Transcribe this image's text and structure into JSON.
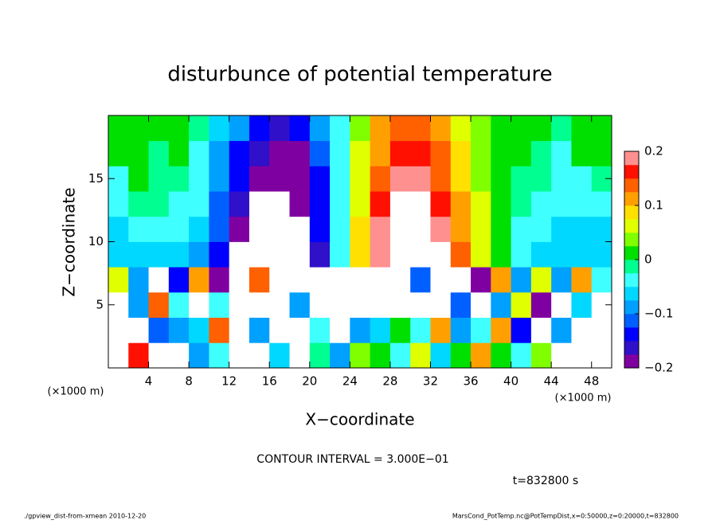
{
  "chart_data": {
    "type": "heatmap",
    "title": "disturbunce of potential temperature",
    "x_label": "X−coordinate",
    "y_label": "Z−coordinate",
    "x_unit": "(×1000 m)",
    "y_unit": "(×1000 m)",
    "contour_note": "CONTOUR INTERVAL = 3.000E−01",
    "time_note": "t=832800 s",
    "footer_left": "./gpview_dist-from-xmean  2010-12-20",
    "footer_right": "MarsCond_PotTemp.nc@PotTempDist,x=0:50000,z=0:20000,t=832800",
    "xlim": [
      0,
      50
    ],
    "ylim": [
      0,
      20
    ],
    "xticks": [
      4,
      8,
      12,
      16,
      20,
      24,
      28,
      32,
      36,
      40,
      44,
      48
    ],
    "yticks": [
      5,
      10,
      15
    ],
    "xbins": [
      0,
      2,
      4,
      6,
      8,
      10,
      12,
      14,
      16,
      18,
      20,
      22,
      24,
      26,
      28,
      30,
      32,
      34,
      36,
      38,
      40,
      42,
      44,
      46,
      48,
      50
    ],
    "ybins": [
      0,
      2,
      4,
      6,
      8,
      10,
      12,
      14,
      16,
      18,
      20
    ],
    "z": [
      [
        0.21,
        0.16,
        0.22,
        0.21,
        -0.1,
        -0.05,
        0.23,
        0.21,
        -0.07,
        0.22,
        -0.02,
        -0.08,
        0.03,
        0.0,
        -0.04,
        0.05,
        -0.06,
        0.02,
        0.1,
        0.0,
        -0.05,
        0.03,
        0.22,
        0.21,
        0.22
      ],
      [
        0.23,
        0.21,
        -0.12,
        -0.1,
        -0.06,
        0.15,
        0.22,
        -0.08,
        0.23,
        0.21,
        -0.05,
        0.22,
        -0.1,
        -0.06,
        0.02,
        -0.04,
        0.1,
        -0.08,
        -0.03,
        0.12,
        -0.14,
        0.22,
        -0.1,
        0.21,
        0.23
      ],
      [
        0.22,
        -0.08,
        0.15,
        -0.05,
        0.21,
        -0.03,
        0.22,
        -0.21,
        0.23,
        -0.1,
        0.24,
        0.23,
        0.22,
        0.24,
        0.23,
        0.22,
        0.21,
        -0.12,
        0.23,
        -0.1,
        0.05,
        -0.2,
        0.22,
        -0.06,
        0.21
      ],
      [
        0.05,
        -0.1,
        0.21,
        -0.15,
        0.1,
        -0.2,
        -0.24,
        0.15,
        -0.22,
        -0.25,
        0.22,
        0.25,
        0.23,
        0.24,
        0.22,
        -0.12,
        0.24,
        0.21,
        -0.18,
        0.1,
        -0.1,
        0.05,
        -0.08,
        0.12,
        -0.05
      ],
      [
        -0.07,
        -0.07,
        -0.06,
        -0.07,
        -0.09,
        -0.14,
        -0.21,
        -0.24,
        -0.24,
        -0.22,
        -0.16,
        -0.04,
        0.09,
        0.2,
        0.24,
        0.24,
        0.21,
        0.13,
        0.06,
        0.02,
        -0.03,
        -0.06,
        -0.07,
        -0.07,
        -0.07
      ],
      [
        -0.06,
        -0.05,
        -0.04,
        -0.05,
        -0.07,
        -0.12,
        -0.19,
        -0.23,
        -0.23,
        -0.21,
        -0.15,
        -0.05,
        0.08,
        0.18,
        0.23,
        0.23,
        0.19,
        0.12,
        0.06,
        0.01,
        -0.03,
        -0.05,
        -0.06,
        -0.06,
        -0.06
      ],
      [
        -0.03,
        -0.02,
        -0.02,
        -0.03,
        -0.05,
        -0.11,
        -0.17,
        -0.21,
        -0.22,
        -0.2,
        -0.14,
        -0.05,
        0.07,
        0.16,
        0.21,
        0.21,
        0.17,
        0.11,
        0.05,
        0.01,
        -0.02,
        -0.04,
        -0.05,
        -0.04,
        -0.04
      ],
      [
        -0.03,
        0,
        -0.01,
        -0.01,
        -0.04,
        -0.1,
        -0.15,
        -0.19,
        -0.2,
        -0.19,
        -0.13,
        -0.05,
        0.06,
        0.14,
        0.18,
        0.18,
        0.15,
        0.09,
        0.04,
        0.01,
        -0.01,
        -0.02,
        -0.04,
        -0.03,
        -0.02
      ],
      [
        0,
        0,
        -0.01,
        0,
        -0.03,
        -0.08,
        -0.13,
        -0.17,
        -0.19,
        -0.18,
        -0.12,
        -0.05,
        0.05,
        0.12,
        0.16,
        0.16,
        0.13,
        0.08,
        0.03,
        0.01,
        0,
        -0.02,
        -0.03,
        0,
        0
      ],
      [
        0,
        0,
        0,
        0,
        -0.02,
        -0.06,
        -0.1,
        -0.14,
        -0.16,
        -0.15,
        -0.1,
        -0.04,
        0.04,
        0.1,
        0.13,
        0.14,
        0.12,
        0.07,
        0.03,
        0,
        0,
        0,
        -0.02,
        0,
        0
      ]
    ],
    "clim": [
      -0.2,
      0.2
    ],
    "colors": [
      "#7f00a0",
      "#3010c8",
      "#0000ff",
      "#0060ff",
      "#00a0ff",
      "#00d8ff",
      "#40ffff",
      "#00ff90",
      "#00e000",
      "#80ff00",
      "#e0ff00",
      "#ffe000",
      "#ffa000",
      "#ff6000",
      "#ff1000",
      "#ff9090"
    ],
    "over_color": "#ffffff",
    "under_color": "#ffffff",
    "cticks": [
      {
        "value": -0.2,
        "label": "−0.2"
      },
      {
        "value": -0.1,
        "label": "−0.1"
      },
      0,
      0.1,
      0.2
    ]
  }
}
